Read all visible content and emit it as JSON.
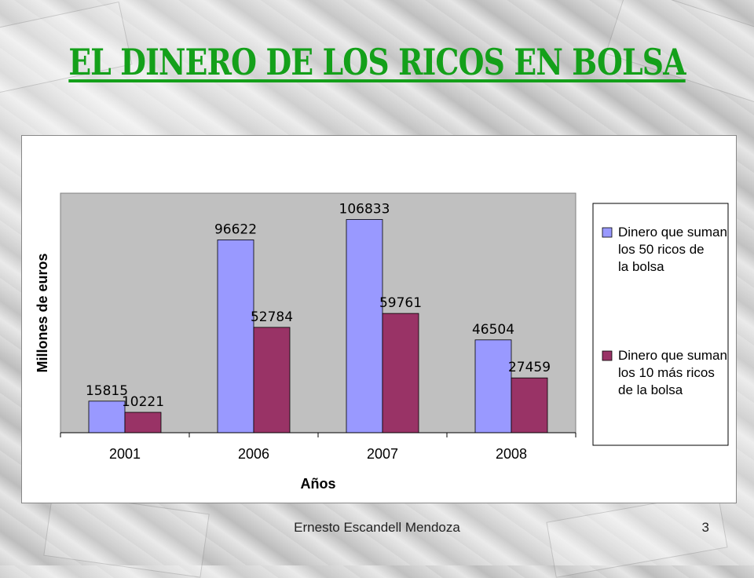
{
  "slide": {
    "title": "EL DINERO DE LOS RICOS EN BOLSA",
    "author": "Ernesto Escandell Mendoza",
    "page_number": "3"
  },
  "chart_data": {
    "type": "bar",
    "categories": [
      "2001",
      "2006",
      "2007",
      "2008"
    ],
    "series": [
      {
        "name": "Dinero que suman los 50 ricos de la bolsa",
        "values": [
          15815,
          96622,
          106833,
          46504
        ],
        "color": "#9999ff"
      },
      {
        "name": "Dinero que suman los 10 más ricos de la bolsa",
        "values": [
          10221,
          52784,
          59761,
          27459
        ],
        "color": "#993366"
      }
    ],
    "xlabel": "Años",
    "ylabel": "Millones de euros",
    "ylim": [
      0,
      120000
    ],
    "plot_background": "#c0c0c0",
    "legend": "right"
  }
}
